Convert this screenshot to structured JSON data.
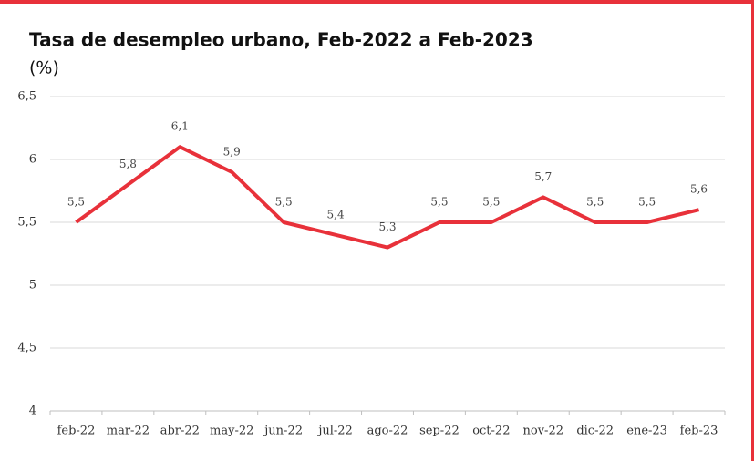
{
  "chart_data": {
    "type": "line",
    "title": "Tasa de desempleo urbano, Feb-2022 a Feb-2023",
    "subtitle": "(%)",
    "categories": [
      "feb-22",
      "mar-22",
      "abr-22",
      "may-22",
      "jun-22",
      "jul-22",
      "ago-22",
      "sep-22",
      "oct-22",
      "nov-22",
      "dic-22",
      "ene-23",
      "feb-23"
    ],
    "series": [
      {
        "name": "Tasa de desempleo urbano",
        "color": "#e8313a",
        "values": [
          5.5,
          5.8,
          6.1,
          5.9,
          5.5,
          5.4,
          5.3,
          5.5,
          5.5,
          5.7,
          5.5,
          5.5,
          5.6
        ],
        "value_labels": [
          "5,5",
          "5,8",
          "6,1",
          "5,9",
          "5,5",
          "5,4",
          "5,3",
          "5,5",
          "5,5",
          "5,7",
          "5,5",
          "5,5",
          "5,6"
        ]
      }
    ],
    "ylim": [
      4,
      6.5
    ],
    "yticks": [
      4,
      {
        "value": 4.5,
        "label": "4,5"
      },
      5,
      {
        "value": 5.5,
        "label": "5,5"
      },
      6,
      {
        "value": 6.5,
        "label": "6,5"
      }
    ],
    "grid": true
  }
}
